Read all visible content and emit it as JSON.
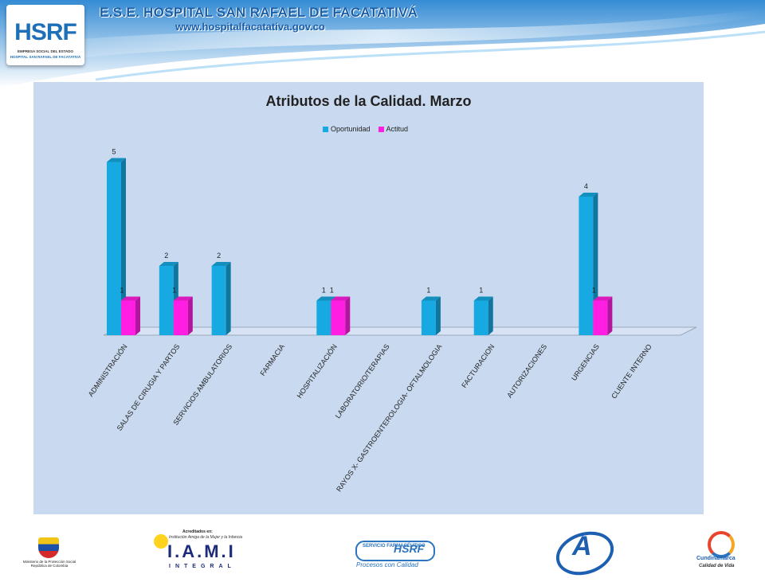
{
  "header": {
    "logo_text": "HSRF",
    "logo_sub1": "EMPRESA SOCIAL DEL ESTADO",
    "logo_sub2": "HOSPITAL SAN RAFAEL DE FACATATIVÁ",
    "title": "E.S.E. HOSPITAL SAN RAFAEL DE FACATATIVÁ",
    "url": "www.hospitalfacatativa.gov.co"
  },
  "colors": {
    "panel_bg": "#c9daf0",
    "oportunidad": "#17a9e1",
    "actitud": "#ff1ee1"
  },
  "chart_data": {
    "type": "bar",
    "title": "Atributos de la Calidad. Marzo",
    "xlabel": "",
    "ylabel": "",
    "ylim": [
      0,
      5
    ],
    "grid": false,
    "legend": "top",
    "style": "3d-column",
    "categories": [
      "ADMINISTRACIÓN",
      "SALAS DE CIRUGIA Y PARTOS",
      "SERVICIOS AMBULATORIOS",
      "FARMACIA",
      "HOSPITALIZACIÓN",
      "LABORATORIO/TERAPIAS",
      "RAYOS X- GASTROENTEROLOGIA- OFTALMOLOGIA",
      "FACTURACION",
      "AUTORIZACIONES",
      "URGENCIAS",
      "CLIENTE INTERNO"
    ],
    "series": [
      {
        "name": "Oportunidad",
        "color": "#17a9e1",
        "values": [
          5,
          2,
          2,
          0,
          1,
          0,
          1,
          1,
          0,
          4,
          0
        ]
      },
      {
        "name": "Actitud",
        "color": "#ff1ee1",
        "values": [
          1,
          1,
          0,
          0,
          1,
          0,
          0,
          0,
          0,
          1,
          0
        ]
      }
    ]
  },
  "footer": {
    "ministerio": "Ministerio de la Protección Social República de Colombia",
    "iami_acreditados": "Acreditados en:",
    "iami_institucion": "Institución Amiga de la Mujer y la Infancia",
    "iami_main": "I.A.M.I",
    "iami_integral": "INTEGRAL",
    "sf_left": "SERVICIO FARMACÉUTICO",
    "sf_right": "HSRF",
    "sf_bottom": "Procesos con Calidad",
    "a_letter": "A",
    "cund_t1": "Cundinamarca",
    "cund_t2": "Calidad de Vida"
  }
}
